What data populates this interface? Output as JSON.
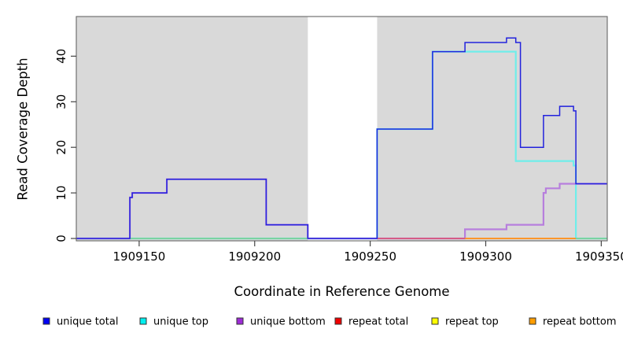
{
  "chart_data": {
    "type": "line",
    "subtype": "step-coverage",
    "title": "",
    "xlabel": "Coordinate in Reference Genome",
    "ylabel": "Read Coverage Depth",
    "xlim": [
      1909122.8,
      1909352.6
    ],
    "ylim": [
      0,
      48.7
    ],
    "xticks": [
      1909150,
      1909200,
      1909250,
      1909300,
      1909350
    ],
    "yticks": [
      0,
      10,
      20,
      30,
      40
    ],
    "grid": false,
    "plot_background": "#d9d9d9",
    "page_background": "#ffffff",
    "no_data_region": {
      "from": 1909223,
      "to": 1909253,
      "color": "#ffffff"
    },
    "legend_position": "bottom-row",
    "series": [
      {
        "name": "unique total",
        "legend_color": "#0101f2",
        "line_color": "#2222dd",
        "line_width": 1.5,
        "steps": [
          [
            1909122.8,
            0
          ],
          [
            1909146,
            9
          ],
          [
            1909147,
            10
          ],
          [
            1909162,
            13
          ],
          [
            1909205,
            3
          ],
          [
            1909223,
            0
          ],
          [
            1909253,
            24
          ],
          [
            1909277,
            41
          ],
          [
            1909291,
            43
          ],
          [
            1909309,
            44
          ],
          [
            1909313,
            43
          ],
          [
            1909315,
            20
          ],
          [
            1909325,
            27
          ],
          [
            1909332,
            29
          ],
          [
            1909338,
            28
          ],
          [
            1909339,
            12
          ]
        ],
        "end": 1909352.6
      },
      {
        "name": "unique top",
        "legend_color": "#00efef",
        "line_color": "#6feeea",
        "line_width": 2.2,
        "steps": [
          [
            1909122.8,
            0
          ],
          [
            1909253,
            24
          ],
          [
            1909277,
            41
          ],
          [
            1909313,
            17
          ],
          [
            1909338,
            16
          ],
          [
            1909339,
            0
          ]
        ],
        "end": 1909352.6
      },
      {
        "name": "unique bottom",
        "legend_color": "#9d2bd6",
        "line_color": "#b77fdd",
        "line_width": 2.2,
        "steps": [
          [
            1909122.8,
            0
          ],
          [
            1909146,
            9
          ],
          [
            1909147,
            10
          ],
          [
            1909162,
            13
          ],
          [
            1909205,
            3
          ],
          [
            1909223,
            0
          ],
          [
            1909291,
            2
          ],
          [
            1909309,
            3
          ],
          [
            1909325,
            10
          ],
          [
            1909326,
            11
          ],
          [
            1909332,
            12
          ]
        ],
        "end": 1909352.6
      },
      {
        "name": "repeat total",
        "legend_color": "#f00000",
        "line_color": "#e1506a",
        "line_width": 1.6,
        "steps": [
          [
            1909253,
            0
          ]
        ],
        "end": 1909339
      },
      {
        "name": "repeat top",
        "legend_color": "#ffff00",
        "line_color": "#ffff00",
        "line_width": 1.6,
        "steps": [
          [
            1909146,
            0
          ]
        ],
        "end": 1909352.6
      },
      {
        "name": "repeat bottom",
        "legend_color": "#ff9d00",
        "line_color": "#ff9420",
        "line_width": 1.8,
        "steps": [
          [
            1909291,
            0
          ]
        ],
        "end": 1909339
      }
    ],
    "overlap_segments": [
      {
        "name": "unique-top-over-repeat-top-overlap",
        "color": "#7ecb8a",
        "value": 0,
        "from": 1909146,
        "to": 1909223
      },
      {
        "name": "unique-top-over-repeat-top-overlap",
        "color": "#7ecb8a",
        "value": 0,
        "from": 1909339,
        "to": 1909352.6
      }
    ],
    "draw_order": [
      "repeat top",
      "unique top",
      "unique bottom",
      "repeat total",
      "repeat bottom",
      "@overlaps",
      "unique total"
    ],
    "axis_color": "#666666",
    "tick_color": "#444444",
    "label_color": "#000000"
  }
}
